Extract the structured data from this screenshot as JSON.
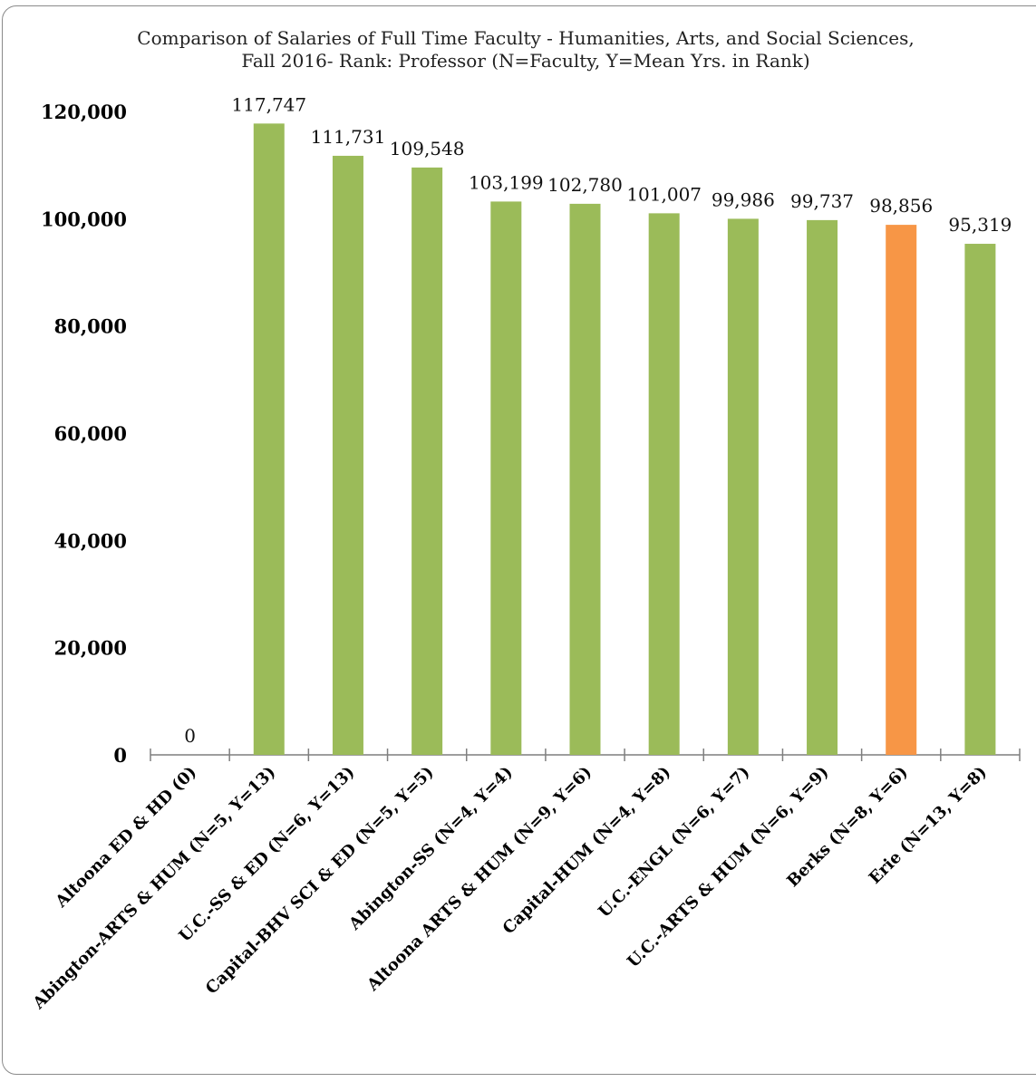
{
  "chart_data": {
    "type": "bar",
    "title": "Comparison of Salaries of Full Time Faculty - Humanities, Arts, and Social Sciences, Fall 2016-  Rank: Professor (N=Faculty, Y=Mean Yrs. in Rank)",
    "categories": [
      "Altoona ED & HD (0)",
      "Abington-ARTS & HUM (N=5, Y=13)",
      "U.C.-SS & ED (N=6, Y=13)",
      "Capital-BHV SCI & ED (N=5, Y=5)",
      "Abington-SS (N=4, Y=4)",
      "Altoona ARTS & HUM (N=9, Y=6)",
      "Capital-HUM (N=4, Y=8)",
      "U.C.-ENGL (N=6, Y=7)",
      "U.C.-ARTS & HUM (N=6, Y=9)",
      "Berks (N=8, Y=6)",
      "Erie (N=13, Y=8)"
    ],
    "values": [
      0,
      117747,
      111731,
      109548,
      103199,
      102780,
      101007,
      99986,
      99737,
      98856,
      95319
    ],
    "data_labels": [
      "0",
      "117,747",
      "111,731",
      "109,548",
      "103,199",
      "102,780",
      "101,007",
      "99,986",
      "99,737",
      "98,856",
      "95,319"
    ],
    "ylim": [
      0,
      120000
    ],
    "yticks": [
      0,
      20000,
      40000,
      60000,
      80000,
      100000,
      120000
    ],
    "ytick_labels": [
      "0",
      "20,000",
      "40,000",
      "60,000",
      "80,000",
      "100,000",
      "120,000"
    ],
    "xlabel": "",
    "ylabel": "",
    "grid": false,
    "legend": "none",
    "colors": {
      "bar": "#9BBB59",
      "highlight_bar": "#F79646",
      "highlight_category": "Berks (N=8, Y=6)",
      "axis": "#7f7f7f"
    }
  }
}
